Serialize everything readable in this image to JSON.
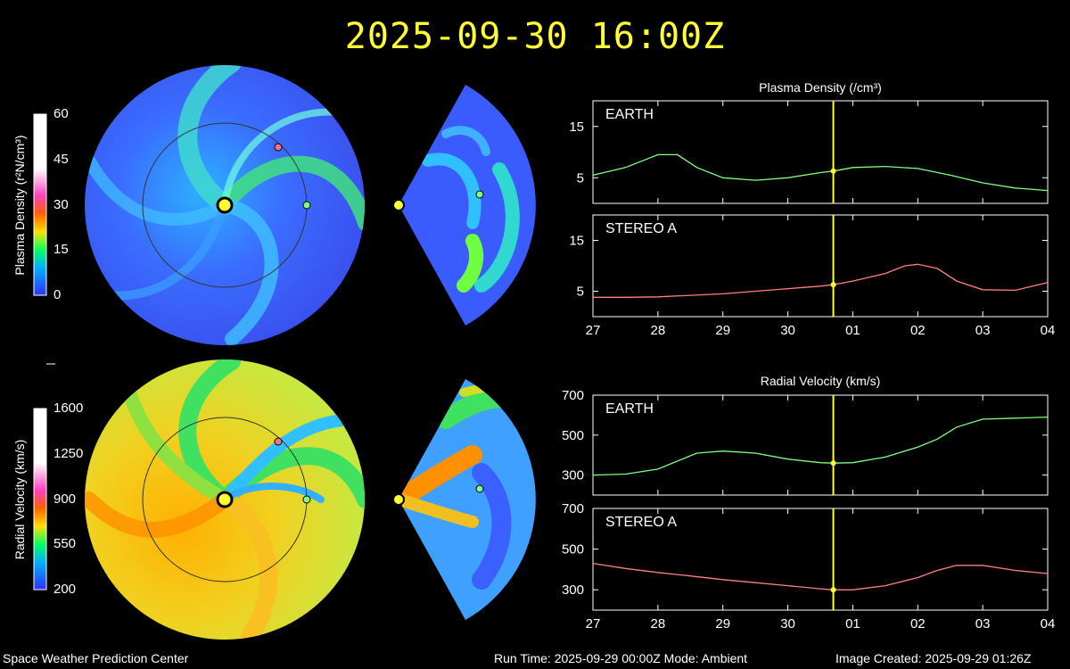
{
  "header": {
    "timestamp": "2025-09-30 16:00Z"
  },
  "footer": {
    "org": "Space Weather Prediction Center",
    "run_info": "Run Time: 2025-09-29 00:00Z  Mode: Ambient",
    "created": "Image Created: 2025-09-29 01:26Z"
  },
  "colorbars": {
    "density": {
      "label": "Plasma Density (r²N/cm³)",
      "ticks": [
        "60",
        "45",
        "30",
        "15",
        "0"
      ]
    },
    "velocity": {
      "label": "Radial Velocity (km/s)",
      "ticks": [
        "1600",
        "1250",
        "900",
        "550",
        "200"
      ]
    }
  },
  "colors": {
    "earth_line": "#80ff80",
    "stereo_line": "#ff8080",
    "marker": "#ffff33"
  },
  "chart_data": [
    {
      "type": "line",
      "title": "Plasma Density (/cm³)",
      "x": [
        "27",
        "28",
        "29",
        "30",
        "01",
        "02",
        "03",
        "04"
      ],
      "ylim": [
        0,
        20
      ],
      "yticks": [
        5,
        15
      ],
      "current_x": 3.7,
      "panels": [
        {
          "name": "EARTH",
          "points": [
            [
              0,
              5.5
            ],
            [
              0.5,
              7
            ],
            [
              1,
              9.5
            ],
            [
              1.3,
              9.5
            ],
            [
              1.6,
              7
            ],
            [
              2,
              5
            ],
            [
              2.5,
              4.5
            ],
            [
              3,
              5
            ],
            [
              3.5,
              6
            ],
            [
              3.7,
              6.3
            ],
            [
              4,
              7
            ],
            [
              4.5,
              7.2
            ],
            [
              5,
              6.8
            ],
            [
              5.5,
              5.5
            ],
            [
              6,
              4
            ],
            [
              6.5,
              3
            ],
            [
              7,
              2.5
            ]
          ]
        },
        {
          "name": "STEREO A",
          "points": [
            [
              0,
              3.8
            ],
            [
              0.5,
              3.8
            ],
            [
              1,
              3.9
            ],
            [
              1.5,
              4.2
            ],
            [
              2,
              4.5
            ],
            [
              2.5,
              5
            ],
            [
              3,
              5.5
            ],
            [
              3.5,
              6
            ],
            [
              3.7,
              6.3
            ],
            [
              4,
              7
            ],
            [
              4.5,
              8.5
            ],
            [
              4.8,
              10
            ],
            [
              5,
              10.3
            ],
            [
              5.3,
              9.5
            ],
            [
              5.6,
              7
            ],
            [
              6,
              5.3
            ],
            [
              6.5,
              5.2
            ],
            [
              7,
              6.7
            ]
          ]
        }
      ]
    },
    {
      "type": "line",
      "title": "Radial Velocity (km/s)",
      "x": [
        "27",
        "28",
        "29",
        "30",
        "01",
        "02",
        "03",
        "04"
      ],
      "ylim": [
        200,
        700
      ],
      "yticks": [
        300,
        500,
        700
      ],
      "current_x": 3.7,
      "panels": [
        {
          "name": "EARTH",
          "points": [
            [
              0,
              300
            ],
            [
              0.5,
              305
            ],
            [
              1,
              330
            ],
            [
              1.3,
              370
            ],
            [
              1.6,
              410
            ],
            [
              2,
              420
            ],
            [
              2.5,
              410
            ],
            [
              3,
              380
            ],
            [
              3.5,
              362
            ],
            [
              3.7,
              360
            ],
            [
              4,
              362
            ],
            [
              4.5,
              390
            ],
            [
              5,
              440
            ],
            [
              5.3,
              480
            ],
            [
              5.6,
              540
            ],
            [
              6,
              580
            ],
            [
              6.5,
              585
            ],
            [
              7,
              590
            ]
          ]
        },
        {
          "name": "STEREO A",
          "points": [
            [
              0,
              430
            ],
            [
              0.5,
              405
            ],
            [
              1,
              385
            ],
            [
              1.5,
              368
            ],
            [
              2,
              350
            ],
            [
              2.5,
              335
            ],
            [
              3,
              320
            ],
            [
              3.5,
              305
            ],
            [
              3.7,
              300
            ],
            [
              4,
              300
            ],
            [
              4.5,
              320
            ],
            [
              5,
              360
            ],
            [
              5.3,
              395
            ],
            [
              5.6,
              420
            ],
            [
              6,
              420
            ],
            [
              6.5,
              395
            ],
            [
              7,
              380
            ]
          ]
        }
      ]
    }
  ]
}
